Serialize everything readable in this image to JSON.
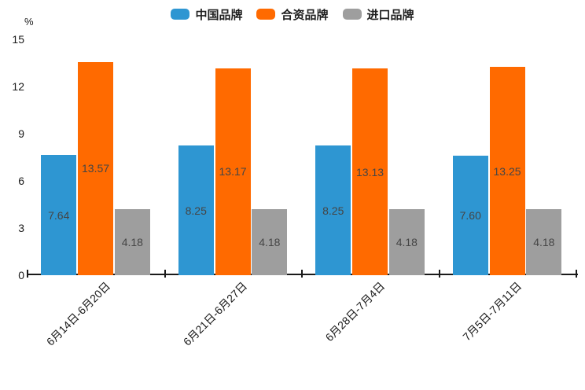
{
  "chart_data": {
    "type": "bar",
    "title": "",
    "xlabel": "",
    "ylabel": "%",
    "ylim": [
      0,
      15
    ],
    "yticks": [
      0,
      3,
      6,
      9,
      12,
      15
    ],
    "grid": false,
    "legend_position": "top",
    "background_color": "#FFFFFF",
    "axis_color": "#1A1A1A",
    "value_label_color": "#454545",
    "categories": [
      "6月14日-6月20日",
      "6月21日-6月27日",
      "6月28日-7月4日",
      "7月5日-7月11日"
    ],
    "series": [
      {
        "name": "中国品牌",
        "color": "#2E96D2",
        "values": [
          7.64,
          8.25,
          8.25,
          7.6
        ],
        "labels": [
          "7.64",
          "8.25",
          "8.25",
          "7.60"
        ]
      },
      {
        "name": "合资品牌",
        "color": "#FF6A00",
        "values": [
          13.57,
          13.17,
          13.13,
          13.25
        ],
        "labels": [
          "13.57",
          "13.17",
          "13.13",
          "13.25"
        ]
      },
      {
        "name": "进口品牌",
        "color": "#9E9E9E",
        "values": [
          4.18,
          4.18,
          4.18,
          4.18
        ],
        "labels": [
          "4.18",
          "4.18",
          "4.18",
          "4.18"
        ]
      }
    ]
  }
}
